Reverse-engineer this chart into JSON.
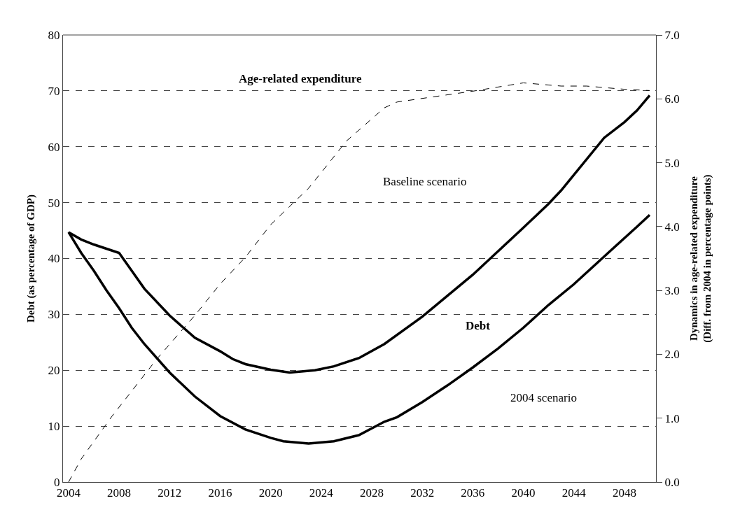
{
  "chart_data": {
    "type": "line",
    "ylabel": "Debt (as percentage of GDP)",
    "y2label": "Dynamics in age-related expenditure\n(Diff. from 2004 in percentage points)",
    "xlim": [
      2003.56,
      2050.5
    ],
    "xticks": [
      2004,
      2008,
      2012,
      2016,
      2020,
      2024,
      2028,
      2032,
      2036,
      2040,
      2044,
      2048
    ],
    "ylim": [
      0,
      80
    ],
    "yticks": [
      0,
      10,
      20,
      30,
      40,
      50,
      60,
      70,
      80
    ],
    "y2lim": [
      0,
      7
    ],
    "y2ticks": [
      {
        "value": 0,
        "label": "0.0"
      },
      {
        "value": 1,
        "label": "1.0"
      },
      {
        "value": 2,
        "label": "2.0"
      },
      {
        "value": 3,
        "label": "3.0"
      },
      {
        "value": 4,
        "label": "4.0"
      },
      {
        "value": 5,
        "label": "5.0"
      },
      {
        "value": 6,
        "label": "6.0"
      },
      {
        "value": 7,
        "label": "7.0"
      }
    ],
    "grid": "y",
    "series": [
      {
        "color": "#000000",
        "line_style": "solid",
        "x": [
          2004,
          2005,
          2006,
          2008,
          2009,
          2010,
          2012,
          2013,
          2014,
          2016,
          2017,
          2018,
          2020,
          2021.5,
          2023.5,
          2025,
          2027,
          2029,
          2032,
          2036,
          2040,
          2042,
          2043,
          2046.4,
          2048,
          2049,
          2050
        ],
        "values": [
          44.7,
          43.4,
          42.5,
          41.0,
          37.8,
          34.6,
          29.8,
          27.8,
          25.8,
          23.4,
          22.0,
          21.1,
          20.1,
          19.6,
          20.0,
          20.7,
          22.2,
          24.7,
          29.6,
          37.1,
          45.5,
          49.8,
          52.2,
          61.6,
          64.4,
          66.5,
          69.2
        ]
      },
      {
        "color": "#000000",
        "line_style": "solid",
        "x": [
          2004,
          2005,
          2006,
          2007,
          2008,
          2009,
          2010,
          2012,
          2014,
          2016,
          2018,
          2020,
          2021,
          2023,
          2025,
          2027,
          2029,
          2030,
          2032,
          2034,
          2036,
          2038,
          2040,
          2042,
          2044,
          2047,
          2049,
          2050
        ],
        "values": [
          44.7,
          41.0,
          37.8,
          34.3,
          31.1,
          27.6,
          24.7,
          19.6,
          15.3,
          11.8,
          9.4,
          7.9,
          7.3,
          6.9,
          7.3,
          8.4,
          10.8,
          11.6,
          14.3,
          17.3,
          20.5,
          23.9,
          27.6,
          31.7,
          35.4,
          41.6,
          45.7,
          47.8
        ]
      },
      {
        "color": "#000000",
        "line_style": "dashed",
        "axis": "y2",
        "x": [
          2004,
          2005,
          2007.4,
          2011,
          2014,
          2016,
          2018,
          2020,
          2023,
          2026,
          2029,
          2030,
          2036,
          2040,
          2043,
          2045,
          2048,
          2050
        ],
        "values": [
          0,
          0.36,
          1.02,
          1.93,
          2.61,
          3.1,
          3.52,
          4.03,
          4.6,
          5.34,
          5.86,
          5.95,
          6.12,
          6.25,
          6.2,
          6.2,
          6.15,
          6.13
        ]
      }
    ],
    "annotations": [
      "Age-related expenditure",
      "Baseline scenario",
      "Debt",
      "2004 scenario"
    ]
  }
}
